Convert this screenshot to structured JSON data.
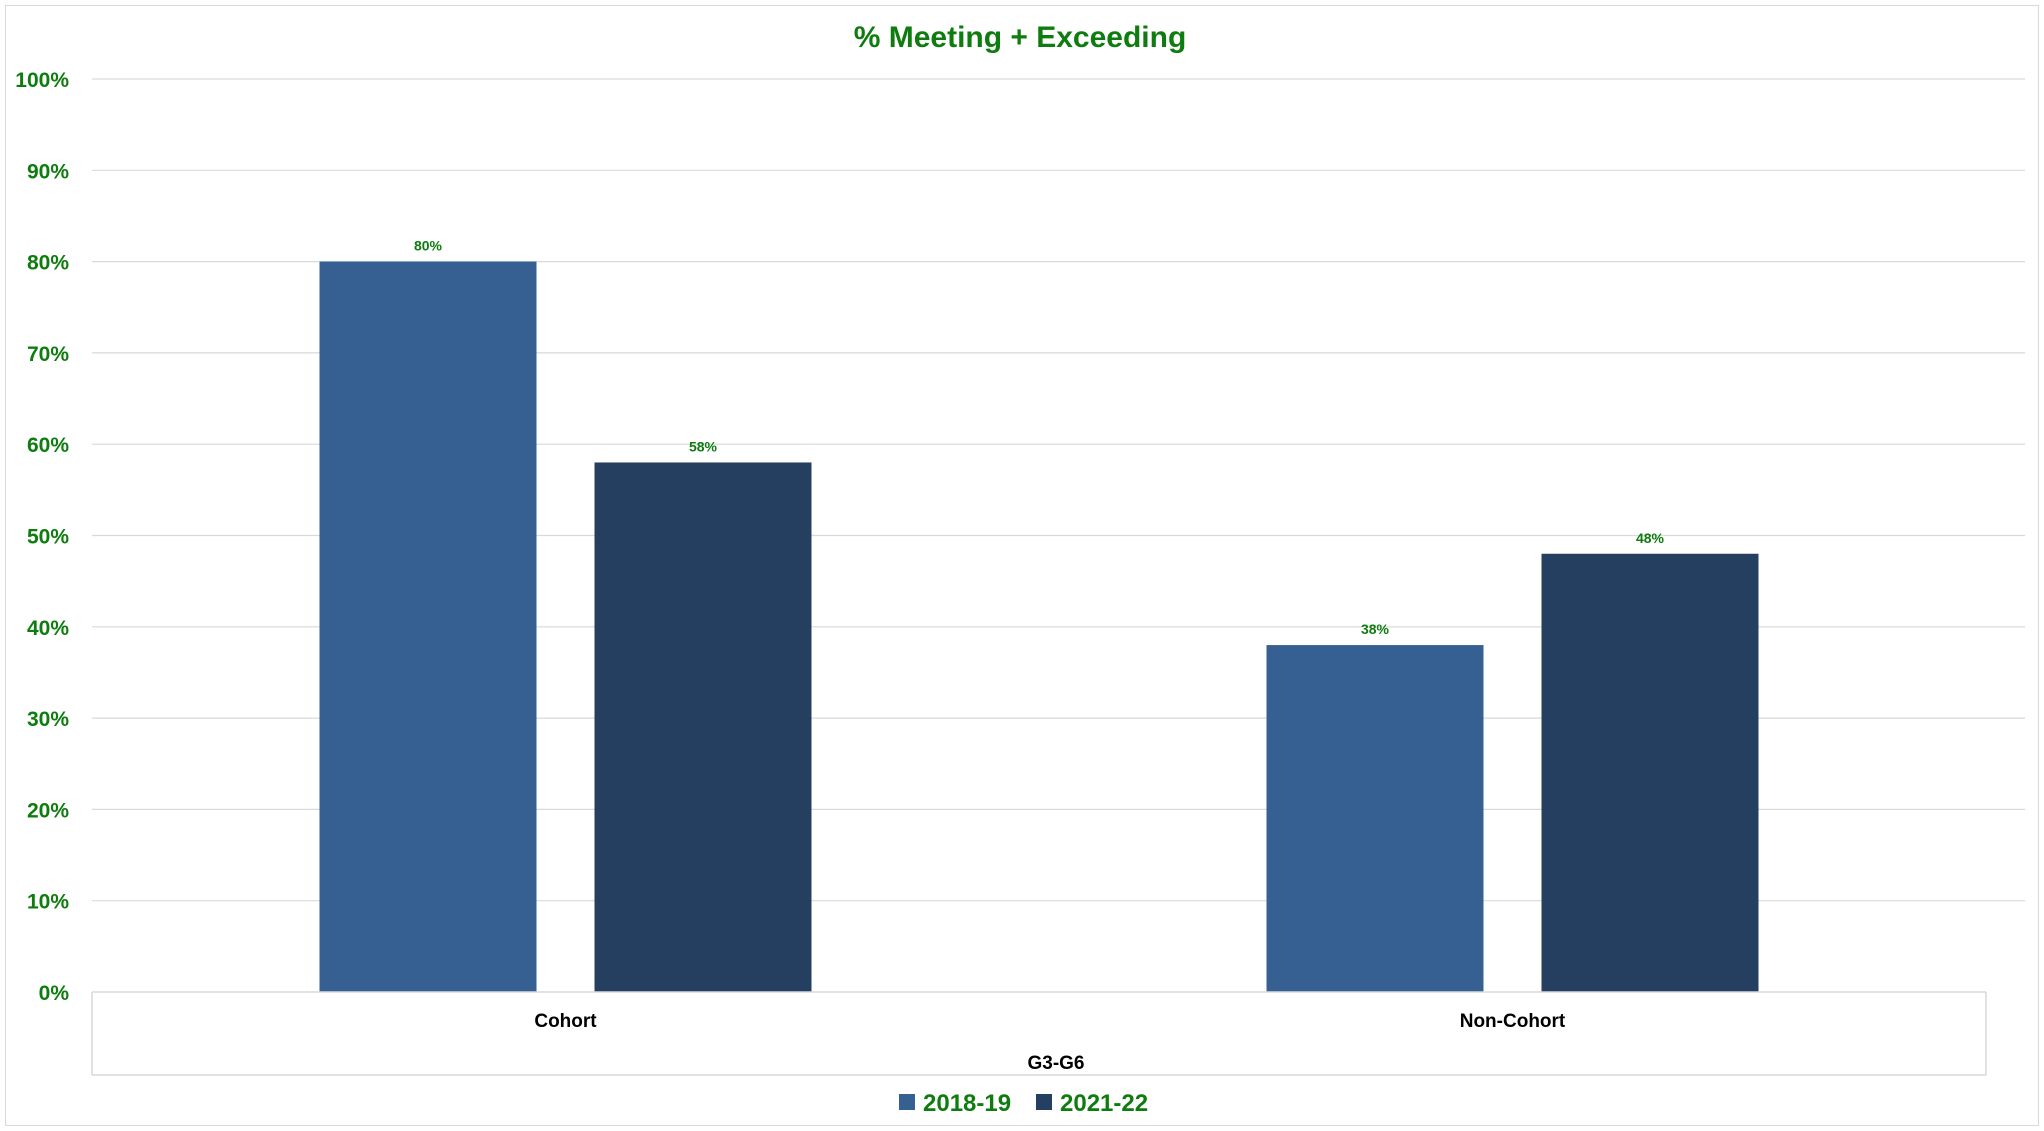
{
  "chart_data": {
    "type": "bar",
    "title": "% Meeting + Exceeding",
    "xlabel": "G3-G6",
    "ylabel": "",
    "categories": [
      "Cohort",
      "Non-Cohort"
    ],
    "series": [
      {
        "name": "2018-19",
        "values": [
          80,
          38
        ],
        "labels": [
          "80%",
          "38%"
        ],
        "color": "#366092"
      },
      {
        "name": "2021-22",
        "values": [
          58,
          48
        ],
        "labels": [
          "58%",
          "48%"
        ],
        "color": "#253f60"
      }
    ],
    "ylim": [
      0,
      100
    ],
    "yticks": [
      "0%",
      "10%",
      "20%",
      "30%",
      "40%",
      "50%",
      "60%",
      "70%",
      "80%",
      "90%",
      "100%"
    ],
    "grid": true,
    "legend_position": "bottom",
    "text_color": "#0e7c0e",
    "gridline_color": "#d9d9d9"
  }
}
